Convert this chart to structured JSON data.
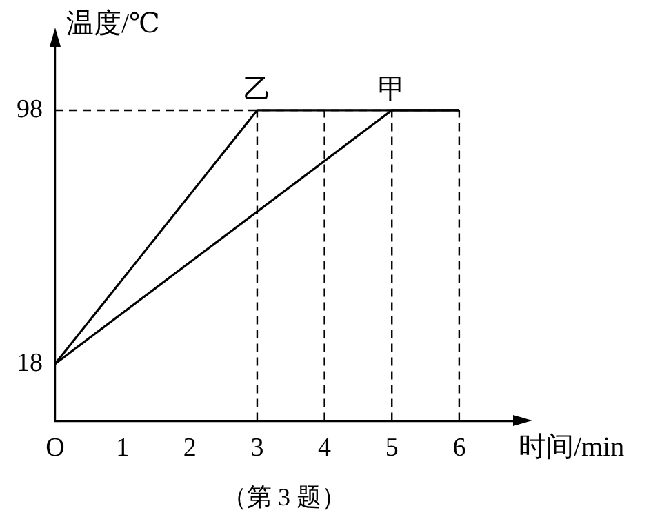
{
  "chart_data": {
    "type": "line",
    "xlabel": "时间/min",
    "ylabel": "温度/℃",
    "annotations": [
      "（第 3 题）"
    ],
    "series": [
      {
        "name": "乙",
        "color": "#000000",
        "x": [
          0,
          3,
          6
        ],
        "values": [
          18,
          98,
          98
        ]
      },
      {
        "name": "甲",
        "color": "#000000",
        "x": [
          0,
          5,
          6
        ],
        "values": [
          18,
          98,
          98
        ]
      }
    ],
    "xlim": [
      0,
      6.8
    ],
    "xticks": [
      {
        "value": 0,
        "label": "O"
      },
      1,
      2,
      3,
      4,
      5,
      6
    ],
    "ylim": [
      0,
      118
    ],
    "yticks": [
      18,
      98
    ],
    "ref_lines": [
      {
        "axis": "y",
        "value": 98,
        "line_style": "dashed"
      },
      {
        "axis": "x",
        "value": 3,
        "line_style": "dashed"
      },
      {
        "axis": "x",
        "value": 4,
        "line_style": "dashed"
      },
      {
        "axis": "x",
        "value": 5,
        "line_style": "dashed"
      },
      {
        "axis": "x",
        "value": 6,
        "line_style": "dashed"
      }
    ],
    "grid": false,
    "legend": false,
    "marker": "none",
    "line_style": "solid"
  }
}
